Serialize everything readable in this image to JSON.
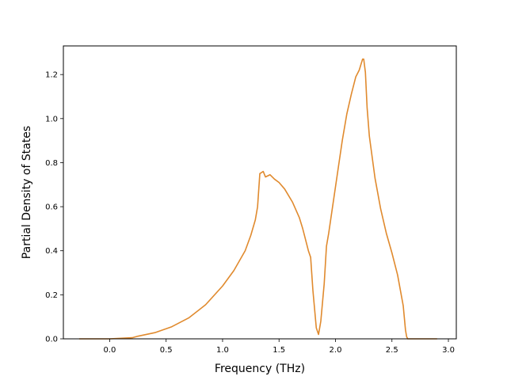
{
  "chart_data": {
    "type": "line",
    "title": "",
    "xlabel": "Frequency (THz)",
    "ylabel": "Partial Density of States",
    "xlim": [
      -0.41,
      3.07
    ],
    "ylim": [
      0.0,
      1.33
    ],
    "xticks": [
      {
        "value": 0.0,
        "label": "0.0"
      },
      {
        "value": 0.5,
        "label": "0.5"
      },
      {
        "value": 1.0,
        "label": "1.0"
      },
      {
        "value": 1.5,
        "label": "1.5"
      },
      {
        "value": 2.0,
        "label": "2.0"
      },
      {
        "value": 2.5,
        "label": "2.5"
      },
      {
        "value": 3.0,
        "label": "3.0"
      }
    ],
    "yticks": [
      {
        "value": 0.0,
        "label": "0.0"
      },
      {
        "value": 0.2,
        "label": "0.2"
      },
      {
        "value": 0.4,
        "label": "0.4"
      },
      {
        "value": 0.6,
        "label": "0.6"
      },
      {
        "value": 0.8,
        "label": "0.8"
      },
      {
        "value": 1.0,
        "label": "1.0"
      },
      {
        "value": 1.2,
        "label": "1.2"
      }
    ],
    "grid": false,
    "legend": "none",
    "series": [
      {
        "color": "#e08a2e",
        "x": [
          -0.27,
          0.0,
          0.2,
          0.25,
          0.4,
          0.55,
          0.7,
          0.85,
          1.0,
          1.1,
          1.2,
          1.25,
          1.29,
          1.31,
          1.33,
          1.36,
          1.38,
          1.42,
          1.46,
          1.5,
          1.55,
          1.62,
          1.68,
          1.71,
          1.74,
          1.76,
          1.78,
          1.8,
          1.83,
          1.85,
          1.87,
          1.9,
          1.92,
          1.94,
          1.98,
          2.02,
          2.06,
          2.1,
          2.14,
          2.18,
          2.21,
          2.24,
          2.25,
          2.26,
          2.265,
          2.28,
          2.3,
          2.35,
          2.4,
          2.45,
          2.5,
          2.55,
          2.6,
          2.62,
          2.63,
          2.64,
          2.66,
          2.9
        ],
        "values": [
          0.0,
          0.0,
          0.005,
          0.012,
          0.028,
          0.055,
          0.095,
          0.155,
          0.24,
          0.31,
          0.4,
          0.47,
          0.54,
          0.6,
          0.75,
          0.76,
          0.735,
          0.745,
          0.725,
          0.71,
          0.68,
          0.62,
          0.55,
          0.5,
          0.44,
          0.4,
          0.37,
          0.22,
          0.05,
          0.02,
          0.08,
          0.25,
          0.42,
          0.48,
          0.62,
          0.76,
          0.9,
          1.02,
          1.11,
          1.19,
          1.22,
          1.27,
          1.27,
          1.23,
          1.21,
          1.05,
          0.92,
          0.73,
          0.59,
          0.48,
          0.39,
          0.29,
          0.15,
          0.04,
          0.01,
          0.0,
          0.0,
          0.0
        ]
      }
    ]
  }
}
